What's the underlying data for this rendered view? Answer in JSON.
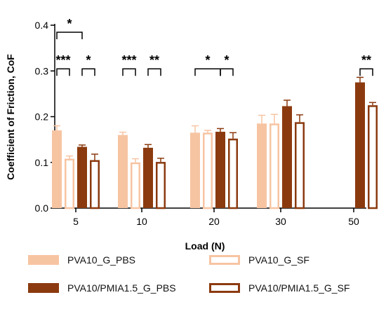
{
  "chart_data": {
    "type": "bar",
    "xlabel": "Load (N)",
    "ylabel": "Coefficient of Friction, CoF",
    "categories": [
      "5",
      "10",
      "20",
      "30",
      "50"
    ],
    "ylim": [
      0,
      0.4
    ],
    "yticks": [
      "0.0",
      "0.1",
      "0.2",
      "0.3",
      "0.4"
    ],
    "grid": false,
    "legend_position": "bottom",
    "series": [
      {
        "name": "PVA10_G_PBS",
        "fill": "#f7c4a2",
        "stroke": "#f7c4a2",
        "hollow": false,
        "values": [
          0.17,
          0.16,
          0.165,
          0.185,
          null
        ],
        "errors": [
          0.01,
          0.006,
          0.015,
          0.018,
          null
        ]
      },
      {
        "name": "PVA10_G_SF",
        "fill": "#ffffff",
        "stroke": "#f7c4a2",
        "hollow": true,
        "values": [
          0.108,
          0.1,
          0.165,
          0.185,
          null
        ],
        "errors": [
          0.006,
          0.008,
          0.005,
          0.02,
          null
        ]
      },
      {
        "name": "PVA10/PMIA1.5_G_PBS",
        "fill": "#8b3a0f",
        "stroke": "#8b3a0f",
        "hollow": false,
        "values": [
          0.134,
          0.132,
          0.167,
          0.223,
          0.275
        ],
        "errors": [
          0.004,
          0.007,
          0.007,
          0.013,
          0.011
        ]
      },
      {
        "name": "PVA10/PMIA1.5_G_SF",
        "fill": "#ffffff",
        "stroke": "#8b3a0f",
        "hollow": true,
        "values": [
          0.105,
          0.101,
          0.152,
          0.188,
          0.225
        ],
        "errors": [
          0.013,
          0.008,
          0.013,
          0.016,
          0.006
        ]
      }
    ],
    "significance": [
      {
        "group": 0,
        "from": 0,
        "to": 1,
        "label": "***",
        "y": 0.32
      },
      {
        "group": 0,
        "from": 2,
        "to": 3,
        "label": "*",
        "y": 0.32
      },
      {
        "group": 0,
        "from": 0,
        "to": 2,
        "label": "*",
        "y": 0.4
      },
      {
        "group": 1,
        "from": 0,
        "to": 1,
        "label": "***",
        "y": 0.32
      },
      {
        "group": 1,
        "from": 2,
        "to": 3,
        "label": "**",
        "y": 0.32
      },
      {
        "group": 2,
        "from": 0,
        "to": 2,
        "label": "*",
        "y": 0.32
      },
      {
        "group": 2,
        "from": 2,
        "to": 3,
        "label": "*",
        "y": 0.32
      },
      {
        "group": 4,
        "from": 2,
        "to": 3,
        "label": "**",
        "y": 0.32
      }
    ]
  }
}
